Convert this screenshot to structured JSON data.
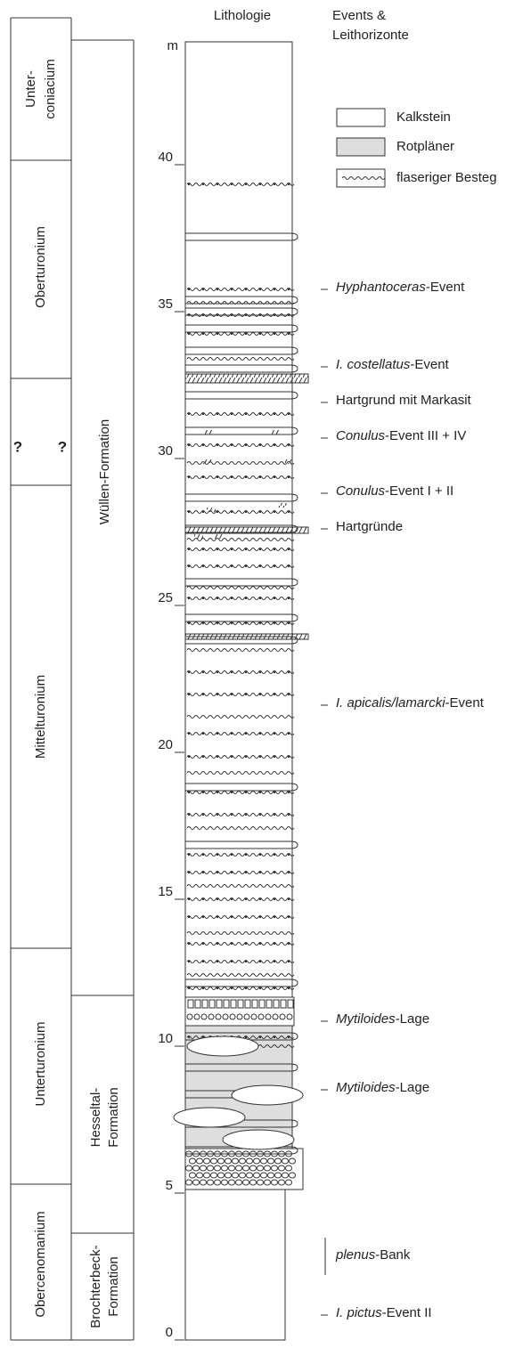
{
  "header": {
    "lithology": "Lithologie",
    "events": [
      "Events &",
      "Leithorizonte"
    ]
  },
  "stages": [
    {
      "lines": [
        "Unter-",
        "coniacium"
      ]
    },
    {
      "lines": [
        "Oberturonium"
      ]
    },
    {
      "lines": [
        "Mittelturonium"
      ]
    },
    {
      "lines": [
        "Unterturonium"
      ]
    },
    {
      "lines": [
        "Obercenomanium"
      ]
    }
  ],
  "uncertain": [
    "?",
    "?"
  ],
  "formations": [
    {
      "lines": [
        "Wüllen-Formation"
      ]
    },
    {
      "lines": [
        "Hesseltal-",
        "Formation"
      ]
    },
    {
      "lines": [
        "Brochterbeck-",
        "Formation"
      ]
    }
  ],
  "scale": {
    "unit": "m",
    "ticks": [
      0,
      5,
      10,
      15,
      20,
      25,
      30,
      35,
      40
    ]
  },
  "legend": [
    "Kalkstein",
    "Rotpläner",
    "flaseriger Besteg"
  ],
  "events": [
    {
      "em": "Hyphantoceras",
      "text": "-Event"
    },
    {
      "em": "I. costellatus",
      "text": "-Event"
    },
    {
      "text": "Hartgrund mit Markasit"
    },
    {
      "em": "Conulus",
      "text": "-Event III + IV"
    },
    {
      "em": "Conulus",
      "text": "-Event I + II"
    },
    {
      "text": "Hartgründe"
    },
    {
      "em": "I. apicalis/lamarcki",
      "text": "-Event"
    },
    {
      "em": "Mytiloides",
      "text": "-Lage"
    },
    {
      "em": "Mytiloides",
      "text": "-Lage"
    },
    {
      "em": "plenus",
      "text": "-Bank"
    },
    {
      "em": "I. pictus",
      "text": "-Event II"
    }
  ]
}
